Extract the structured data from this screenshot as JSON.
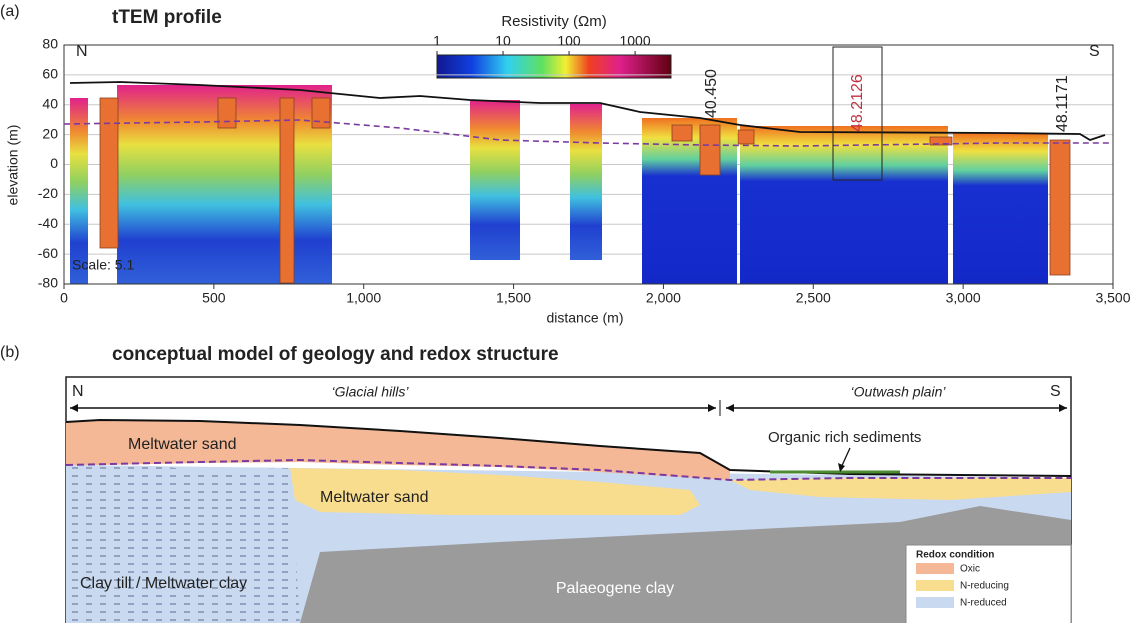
{
  "chart_data": {
    "type": "profile",
    "panel_label": "(a)",
    "title": "tTEM profile",
    "north": "N",
    "south": "S",
    "xlabel": "distance (m)",
    "ylabel": "elevation (m)",
    "xlim": [
      0,
      3500
    ],
    "ylim": [
      -80,
      80
    ],
    "xticks": [
      0,
      500,
      {
        "value": 1000,
        "label": "1,000"
      },
      {
        "value": 1500,
        "label": "1,500"
      },
      {
        "value": 2000,
        "label": "2,000"
      },
      {
        "value": 2500,
        "label": "2,500"
      },
      {
        "value": 3000,
        "label": "3,000"
      },
      {
        "value": 3500,
        "label": "3,500"
      }
    ],
    "yticks": [
      -80,
      -60,
      -40,
      -20,
      0,
      20,
      40,
      60,
      80
    ],
    "grid": true,
    "colorbar": {
      "title": "Resistivity (Ωm)",
      "log": true,
      "clim": [
        1,
        3500
      ],
      "ticks": [
        1,
        10,
        100,
        1000
      ]
    },
    "boreholes": [
      "40.450",
      "48.2126",
      "48.1171"
    ],
    "scale_note": "Scale: 5.1"
  },
  "panel_b": {
    "panel_label": "(b)",
    "title": "conceptual model of geology and redox structure",
    "north": "N",
    "south": "S",
    "region_left": "‘Glacial hills’",
    "region_right": "‘Outwash plain’",
    "labels": [
      "Meltwater sand",
      "Meltwater sand",
      "Organic rich sediments",
      "Clay till / Meltwater clay",
      "Palaeogene clay"
    ],
    "legend": {
      "title": "Redox condition",
      "items": [
        "Oxic",
        "N-reducing",
        "N-reduced"
      ]
    }
  }
}
